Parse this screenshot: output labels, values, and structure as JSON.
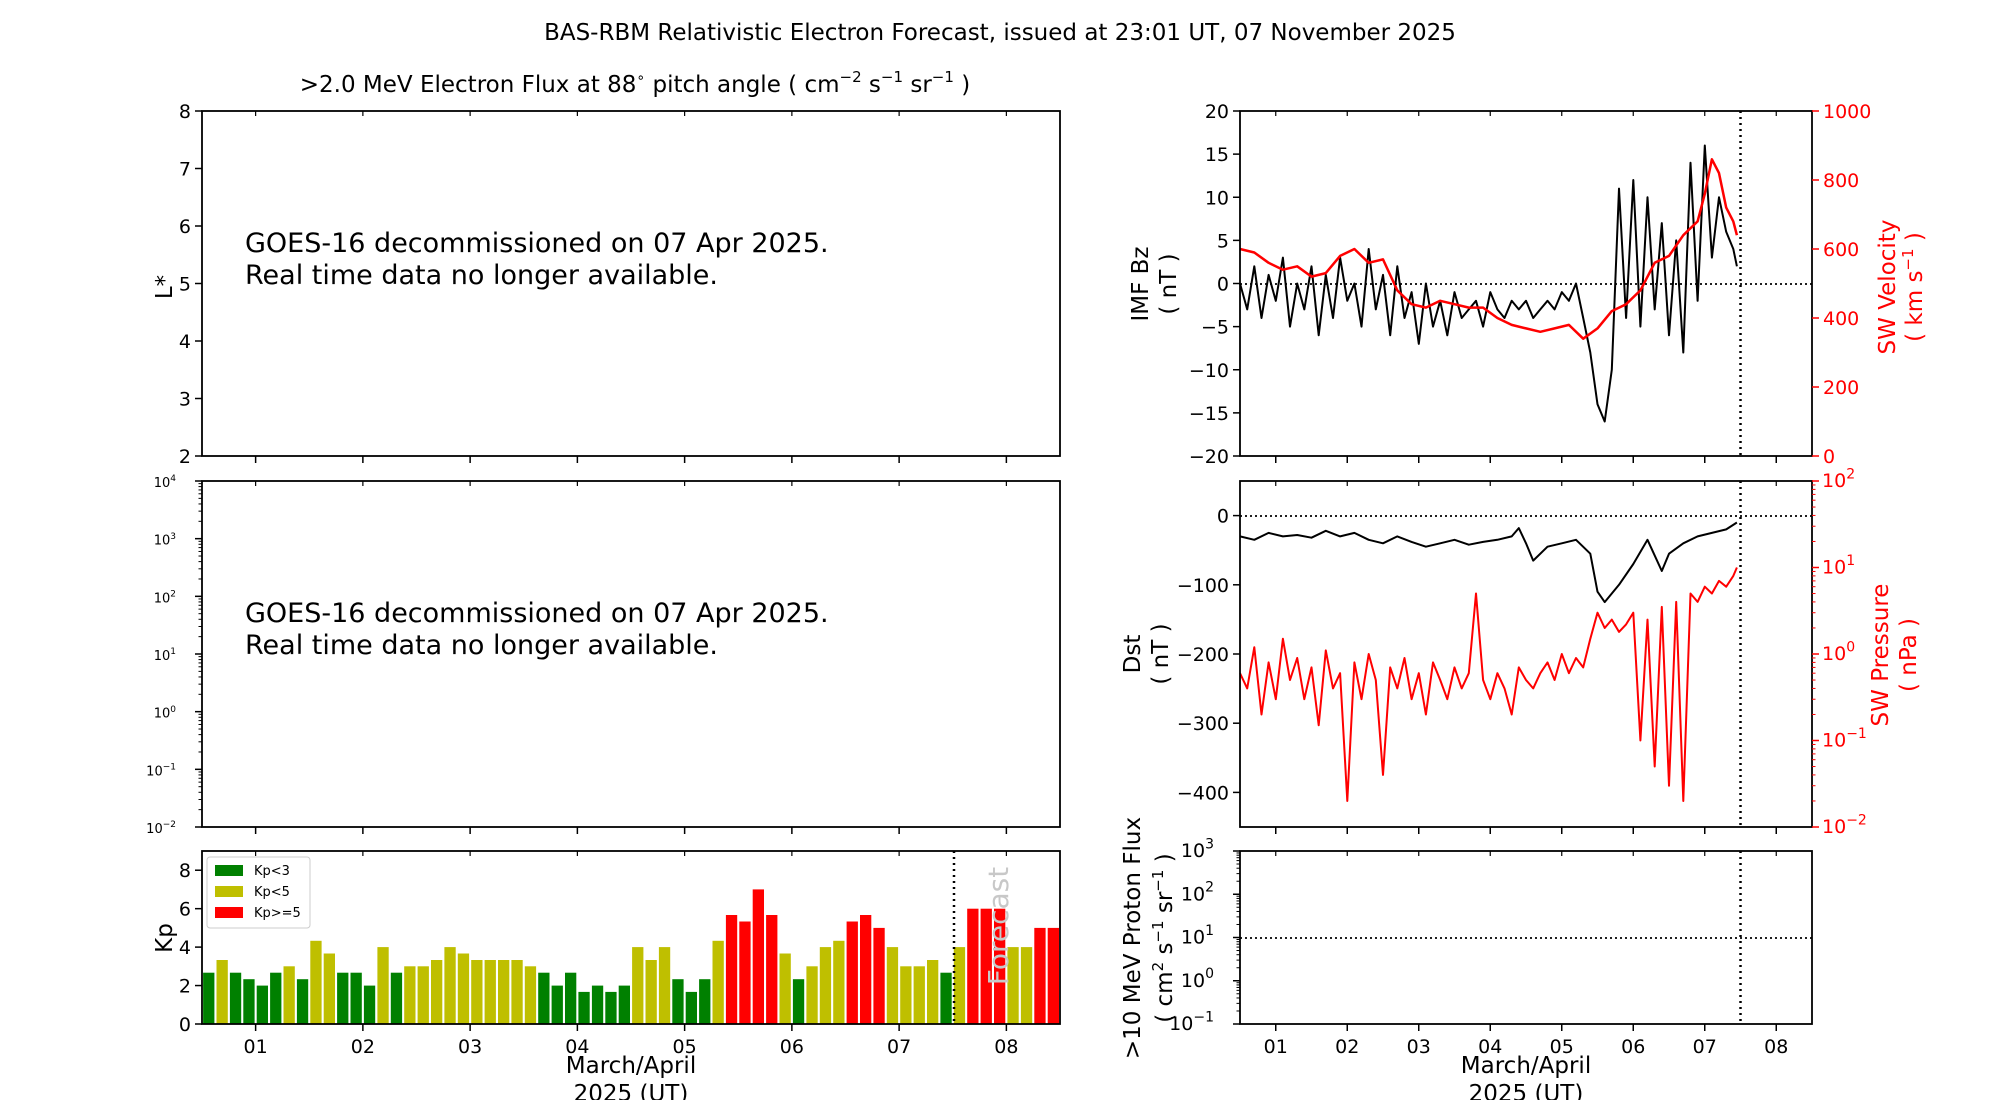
{
  "title": "BAS-RBM Relativistic Electron Forecast, issued at 23:01 UT, 07 November 2025",
  "flux_title": {
    "prefix": ">2.0 MeV Electron Flux at 88",
    "degree": "∘",
    "suffix": " pitch angle ( cm",
    "exp1": "−2",
    "s": " s",
    "exp2": "−1",
    "sr": " sr",
    "exp3": "−1",
    "close": " )"
  },
  "notice_line1": "GOES-16 decommissioned on 07 Apr 2025.",
  "notice_line2": "Real time data no longer available.",
  "xlabel_line1": "March/April",
  "xlabel_line2": "2025 (UT)",
  "forecast_label": "Forecast",
  "colors": {
    "kp_low": "#008000",
    "kp_mid": "#bfbf00",
    "kp_high": "#ff0000",
    "solarwind": "#ff0000",
    "imf": "#000000"
  },
  "chart_data": [
    {
      "id": "lstar",
      "type": "heatmap",
      "ylabel": "L*",
      "ylim": [
        2,
        8
      ],
      "yticks": [
        "2",
        "3",
        "4",
        "5",
        "6",
        "7",
        "8"
      ],
      "x_range_days": [
        0.5,
        8.5
      ]
    },
    {
      "id": "flux",
      "type": "line",
      "ylim": [
        0.01,
        10000
      ],
      "yscale": "log",
      "yticks": [
        "10",
        "10",
        "10",
        "10",
        "10",
        "10",
        "10"
      ],
      "ytick_exponents": [
        "−2",
        "−1",
        "0",
        "1",
        "2",
        "3",
        "4"
      ],
      "x_range_days": [
        0.5,
        8.5
      ]
    },
    {
      "id": "kp",
      "type": "bar",
      "ylabel": "Kp",
      "ylim": [
        0,
        9
      ],
      "yticks": [
        "0",
        "2",
        "4",
        "6",
        "8"
      ],
      "xticks": [
        "01",
        "02",
        "03",
        "04",
        "05",
        "06",
        "07",
        "08"
      ],
      "x_range_days": [
        0.5,
        8.5
      ],
      "bar_width_days": 0.105,
      "forecast_start_day": 7.5,
      "legend": {
        "position": "upper-left",
        "entries": [
          "Kp<3",
          "Kp<5",
          "Kp>=5"
        ]
      },
      "x": [
        0.5625,
        0.6875,
        0.8125,
        0.9375,
        1.0625,
        1.1875,
        1.3125,
        1.4375,
        1.5625,
        1.6875,
        1.8125,
        1.9375,
        2.0625,
        2.1875,
        2.3125,
        2.4375,
        2.5625,
        2.6875,
        2.8125,
        2.9375,
        3.0625,
        3.1875,
        3.3125,
        3.4375,
        3.5625,
        3.6875,
        3.8125,
        3.9375,
        4.0625,
        4.1875,
        4.3125,
        4.4375,
        4.5625,
        4.6875,
        4.8125,
        4.9375,
        5.0625,
        5.1875,
        5.3125,
        5.4375,
        5.5625,
        5.6875,
        5.8125,
        5.9375,
        6.0625,
        6.1875,
        6.3125,
        6.4375,
        6.5625,
        6.6875,
        6.8125,
        6.9375,
        7.0625,
        7.1875,
        7.3125,
        7.4375,
        7.5625,
        7.6875,
        7.8125,
        7.9375,
        8.0625,
        8.1875,
        8.3125,
        8.4375
      ],
      "values": [
        2.67,
        3.33,
        2.67,
        2.33,
        2.0,
        2.67,
        3.0,
        2.33,
        4.33,
        3.67,
        2.67,
        2.67,
        2.0,
        4.0,
        2.67,
        3.0,
        3.0,
        3.33,
        4.0,
        3.67,
        3.33,
        3.33,
        3.33,
        3.33,
        3.0,
        2.67,
        2.0,
        2.67,
        1.67,
        2.0,
        1.67,
        2.0,
        4.0,
        3.33,
        4.0,
        2.33,
        1.67,
        2.33,
        4.33,
        5.67,
        5.33,
        7.0,
        5.67,
        3.67,
        2.33,
        3.0,
        4.0,
        4.33,
        5.33,
        5.67,
        5.0,
        4.0,
        3.0,
        3.0,
        3.33,
        2.67,
        4.0,
        6.0,
        6.0,
        6.0,
        4.0,
        4.0,
        5.0,
        5.0
      ]
    },
    {
      "id": "imf_sw",
      "type": "line",
      "ylabel": "IMF Bz",
      "ylabel_unit": "( nT )",
      "ylim": [
        -20,
        20
      ],
      "yticks": [
        "−20",
        "−15",
        "−10",
        "−5",
        "0",
        "5",
        "10",
        "15",
        "20"
      ],
      "y2label": "SW Velocity",
      "y2label_unit_prefix": "( km s",
      "y2label_unit_exp": "−1",
      "y2label_unit_suffix": " )",
      "y2lim": [
        0,
        1000
      ],
      "y2ticks": [
        "0",
        "200",
        "400",
        "600",
        "800",
        "1000"
      ],
      "x_range_days": [
        0.5,
        8.5
      ],
      "now_day": 7.5,
      "series": [
        {
          "color": "#000000",
          "x": [
            0.5,
            0.6,
            0.7,
            0.8,
            0.9,
            1.0,
            1.1,
            1.2,
            1.3,
            1.4,
            1.5,
            1.6,
            1.7,
            1.8,
            1.9,
            2.0,
            2.1,
            2.2,
            2.3,
            2.4,
            2.5,
            2.6,
            2.7,
            2.8,
            2.9,
            3.0,
            3.1,
            3.2,
            3.3,
            3.4,
            3.5,
            3.6,
            3.7,
            3.8,
            3.9,
            4.0,
            4.1,
            4.2,
            4.3,
            4.4,
            4.5,
            4.6,
            4.7,
            4.8,
            4.9,
            5.0,
            5.1,
            5.2,
            5.3,
            5.4,
            5.5,
            5.6,
            5.7,
            5.8,
            5.9,
            6.0,
            6.1,
            6.2,
            6.3,
            6.4,
            6.5,
            6.6,
            6.7,
            6.8,
            6.9,
            7.0,
            7.1,
            7.2,
            7.3,
            7.4,
            7.45
          ],
          "y": [
            0,
            -3,
            2,
            -4,
            1,
            -2,
            3,
            -5,
            0,
            -3,
            2,
            -6,
            1,
            -4,
            3,
            -2,
            0,
            -5,
            4,
            -3,
            1,
            -6,
            2,
            -4,
            -1,
            -7,
            0,
            -5,
            -2,
            -6,
            -1,
            -4,
            -3,
            -2,
            -5,
            -1,
            -3,
            -4,
            -2,
            -3,
            -2,
            -4,
            -3,
            -2,
            -3,
            -1,
            -2,
            0,
            -4,
            -8,
            -14,
            -16,
            -10,
            11,
            -4,
            12,
            -5,
            10,
            -3,
            7,
            -6,
            5,
            -8,
            14,
            -2,
            16,
            3,
            10,
            6,
            4,
            2
          ]
        },
        {
          "color": "#ff0000",
          "x": [
            0.5,
            0.7,
            0.9,
            1.1,
            1.3,
            1.5,
            1.7,
            1.9,
            2.1,
            2.3,
            2.5,
            2.7,
            2.9,
            3.1,
            3.3,
            3.5,
            3.7,
            3.9,
            4.1,
            4.3,
            4.5,
            4.7,
            4.9,
            5.1,
            5.3,
            5.5,
            5.7,
            5.9,
            6.1,
            6.3,
            6.5,
            6.7,
            6.9,
            7.0,
            7.1,
            7.2,
            7.3,
            7.4,
            7.45
          ],
          "y": [
            600,
            590,
            560,
            540,
            550,
            520,
            530,
            580,
            600,
            560,
            570,
            480,
            440,
            430,
            450,
            440,
            430,
            430,
            400,
            380,
            370,
            360,
            370,
            380,
            340,
            370,
            420,
            440,
            480,
            560,
            580,
            640,
            680,
            760,
            860,
            820,
            720,
            680,
            640
          ]
        }
      ]
    },
    {
      "id": "dst_pressure",
      "type": "line",
      "ylabel": "Dst",
      "ylabel_unit": "( nT )",
      "ylim": [
        -450,
        50
      ],
      "yticks": [
        "−400",
        "−300",
        "−200",
        "−100",
        "0"
      ],
      "y2label": "SW Pressure",
      "y2label_unit": "( nPa )",
      "y2lim": [
        0.01,
        100
      ],
      "y2scale": "log",
      "y2ticks": [
        "10",
        "10",
        "10",
        "10",
        "10"
      ],
      "y2tick_exponents": [
        "−2",
        "−1",
        "0",
        "1",
        "2"
      ],
      "x_range_days": [
        0.5,
        8.5
      ],
      "now_day": 7.5,
      "series": [
        {
          "color": "#000000",
          "x": [
            0.5,
            0.7,
            0.9,
            1.1,
            1.3,
            1.5,
            1.7,
            1.9,
            2.1,
            2.3,
            2.5,
            2.7,
            2.9,
            3.1,
            3.3,
            3.5,
            3.7,
            3.9,
            4.1,
            4.3,
            4.4,
            4.5,
            4.6,
            4.8,
            5.0,
            5.2,
            5.4,
            5.5,
            5.6,
            5.8,
            6.0,
            6.2,
            6.4,
            6.5,
            6.7,
            6.9,
            7.1,
            7.3,
            7.45
          ],
          "y": [
            -30,
            -35,
            -25,
            -30,
            -28,
            -32,
            -22,
            -30,
            -25,
            -35,
            -40,
            -30,
            -38,
            -45,
            -40,
            -35,
            -42,
            -38,
            -35,
            -30,
            -18,
            -40,
            -65,
            -45,
            -40,
            -35,
            -55,
            -110,
            -125,
            -100,
            -70,
            -35,
            -80,
            -55,
            -40,
            -30,
            -25,
            -20,
            -10
          ]
        },
        {
          "color": "#ff0000",
          "x": [
            0.5,
            0.6,
            0.7,
            0.8,
            0.9,
            1.0,
            1.1,
            1.2,
            1.3,
            1.4,
            1.5,
            1.6,
            1.7,
            1.8,
            1.9,
            2.0,
            2.1,
            2.2,
            2.3,
            2.4,
            2.5,
            2.6,
            2.7,
            2.8,
            2.9,
            3.0,
            3.1,
            3.2,
            3.3,
            3.4,
            3.5,
            3.6,
            3.7,
            3.8,
            3.9,
            4.0,
            4.1,
            4.2,
            4.3,
            4.4,
            4.5,
            4.6,
            4.7,
            4.8,
            4.9,
            5.0,
            5.1,
            5.2,
            5.3,
            5.4,
            5.5,
            5.6,
            5.7,
            5.8,
            5.9,
            6.0,
            6.1,
            6.2,
            6.3,
            6.4,
            6.5,
            6.6,
            6.7,
            6.8,
            6.9,
            7.0,
            7.1,
            7.2,
            7.3,
            7.4,
            7.45
          ],
          "y": [
            0.6,
            0.4,
            1.2,
            0.2,
            0.8,
            0.3,
            1.5,
            0.5,
            0.9,
            0.3,
            0.7,
            0.15,
            1.1,
            0.4,
            0.6,
            0.02,
            0.8,
            0.3,
            1.0,
            0.5,
            0.04,
            0.7,
            0.4,
            0.9,
            0.3,
            0.6,
            0.2,
            0.8,
            0.5,
            0.3,
            0.7,
            0.4,
            0.6,
            5.0,
            0.5,
            0.3,
            0.6,
            0.4,
            0.2,
            0.7,
            0.5,
            0.4,
            0.6,
            0.8,
            0.5,
            1.0,
            0.6,
            0.9,
            0.7,
            1.5,
            3.0,
            2.0,
            2.5,
            1.8,
            2.2,
            3.0,
            0.1,
            2.5,
            0.05,
            3.5,
            0.03,
            4.0,
            0.02,
            5.0,
            4.0,
            6.0,
            5.0,
            7.0,
            6.0,
            8.0,
            10.0
          ]
        }
      ]
    },
    {
      "id": "proton",
      "type": "line",
      "ylabel": ">10 MeV Proton Flux",
      "ylabel_unit_prefix": "( cm",
      "ylabel_unit_exp1": "2",
      "ylabel_unit_mid1": " s",
      "ylabel_unit_exp2": "−1",
      "ylabel_unit_mid2": " sr",
      "ylabel_unit_exp3": "−1",
      "ylabel_unit_suffix": " )",
      "ylim": [
        0.1,
        1000
      ],
      "yscale": "log",
      "yticks": [
        "10",
        "10",
        "10",
        "10",
        "10"
      ],
      "ytick_exponents": [
        "−1",
        "0",
        "1",
        "2",
        "3"
      ],
      "xticks": [
        "01",
        "02",
        "03",
        "04",
        "05",
        "06",
        "07",
        "08"
      ],
      "x_range_days": [
        0.5,
        8.5
      ],
      "now_day": 7.5,
      "threshold": 10
    }
  ]
}
